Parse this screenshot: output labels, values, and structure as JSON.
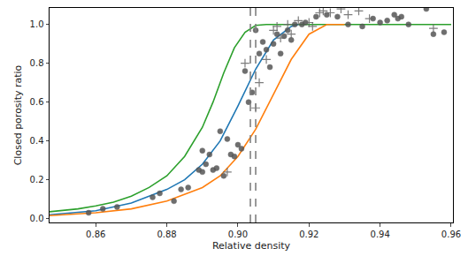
{
  "chart_data": {
    "type": "scatter",
    "x_label": "Relative density",
    "y_label": "Closed porosity ratio",
    "xlim": [
      0.847,
      0.9605
    ],
    "ylim": [
      -0.02,
      1.085
    ],
    "xticks": [
      0.86,
      0.88,
      {
        "value": 0.9,
        "label": "0.90"
      },
      0.92,
      0.94,
      0.96
    ],
    "yticks": [
      {
        "value": 0,
        "label": "0.0"
      },
      0.2,
      0.4,
      0.6,
      0.8,
      {
        "value": 1,
        "label": "1.0"
      }
    ],
    "grid": false,
    "series": [
      {
        "type": "line",
        "color": "#2ca02c",
        "line_style": "solid",
        "x": [
          0.847,
          0.855,
          0.86,
          0.865,
          0.87,
          0.875,
          0.88,
          0.885,
          0.89,
          0.893,
          0.896,
          0.899,
          0.902,
          0.905,
          0.908,
          0.96
        ],
        "values": [
          0.035,
          0.05,
          0.065,
          0.085,
          0.115,
          0.16,
          0.22,
          0.32,
          0.47,
          0.6,
          0.75,
          0.88,
          0.96,
          0.995,
          1.0,
          1.0
        ]
      },
      {
        "type": "line",
        "color": "#1f77b4",
        "line_style": "solid",
        "x": [
          0.847,
          0.86,
          0.87,
          0.88,
          0.885,
          0.89,
          0.895,
          0.9,
          0.905,
          0.91,
          0.915,
          0.917
        ],
        "values": [
          0.02,
          0.04,
          0.08,
          0.15,
          0.2,
          0.28,
          0.4,
          0.58,
          0.77,
          0.92,
          0.99,
          1.0
        ]
      },
      {
        "type": "line",
        "color": "#ff7f0e",
        "line_style": "solid",
        "x": [
          0.847,
          0.86,
          0.87,
          0.88,
          0.89,
          0.895,
          0.9,
          0.905,
          0.91,
          0.915,
          0.92,
          0.925,
          0.93
        ],
        "values": [
          0.015,
          0.03,
          0.05,
          0.09,
          0.16,
          0.22,
          0.32,
          0.46,
          0.64,
          0.82,
          0.95,
          1.0,
          1.0
        ]
      },
      {
        "type": "scatter",
        "color": "#555555",
        "marker": "circle",
        "x": [
          0.858,
          0.862,
          0.866,
          0.876,
          0.878,
          0.882,
          0.884,
          0.886,
          0.889,
          0.89,
          0.89,
          0.891,
          0.892,
          0.893,
          0.894,
          0.895,
          0.896,
          0.897,
          0.898,
          0.899,
          0.9,
          0.901,
          0.902,
          0.903,
          0.904,
          0.905,
          0.906,
          0.907,
          0.908,
          0.909,
          0.91,
          0.911,
          0.912,
          0.913,
          0.914,
          0.915,
          0.916,
          0.918,
          0.919,
          0.922,
          0.925,
          0.928,
          0.931,
          0.935,
          0.938,
          0.94,
          0.942,
          0.944,
          0.945,
          0.946,
          0.948,
          0.953,
          0.955,
          0.958
        ],
        "values": [
          0.03,
          0.05,
          0.06,
          0.11,
          0.13,
          0.09,
          0.15,
          0.16,
          0.25,
          0.24,
          0.35,
          0.28,
          0.33,
          0.25,
          0.26,
          0.45,
          0.22,
          0.41,
          0.33,
          0.32,
          0.38,
          0.36,
          0.76,
          0.6,
          0.65,
          0.97,
          0.85,
          0.91,
          0.87,
          0.78,
          0.9,
          0.95,
          0.85,
          0.94,
          0.97,
          0.92,
          1.0,
          1.0,
          1.01,
          1.04,
          1.05,
          1.04,
          1.0,
          0.99,
          1.03,
          1.01,
          1.02,
          1.05,
          1.03,
          1.04,
          1.0,
          1.08,
          0.95,
          0.96
        ]
      },
      {
        "type": "scatter",
        "color": "#666666",
        "marker": "cross",
        "x": [
          0.897,
          0.902,
          0.905,
          0.906,
          0.908,
          0.91,
          0.911,
          0.912,
          0.914,
          0.915,
          0.917,
          0.92,
          0.921,
          0.923,
          0.924,
          0.926,
          0.929,
          0.931,
          0.934,
          0.937,
          0.955
        ],
        "values": [
          0.24,
          0.8,
          0.57,
          0.7,
          0.82,
          0.97,
          0.99,
          0.93,
          1.0,
          0.95,
          1.02,
          1.01,
          0.99,
          1.06,
          1.07,
          1.06,
          1.08,
          1.05,
          1.07,
          1.03,
          0.98
        ]
      }
    ],
    "vlines": {
      "x": [
        0.9035,
        0.905
      ],
      "color": "#808080",
      "line_style": "dashed"
    }
  }
}
